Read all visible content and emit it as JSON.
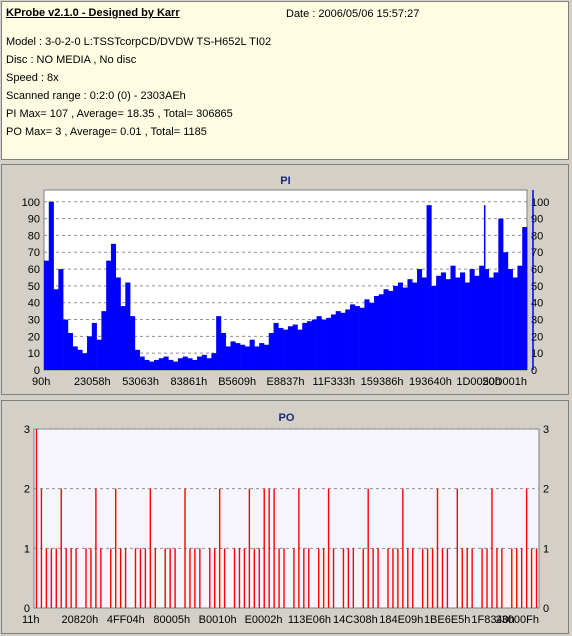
{
  "header": {
    "title": "KProbe v2.1.0 - Designed by Karr",
    "date": "Date : 2006/05/06 15:57:27",
    "model": "Model : 3-0-2-0 L:TSSTcorpCD/DVDW TS-H652L TI02",
    "disc": "Disc : NO MEDIA , No disc",
    "speed": "Speed : 8x",
    "scanned_range": "Scanned range : 0:2:0 (0) - 2303AEh",
    "pi_summary": "PI Max= 107 , Average= 18.35 , Total= 306865",
    "po_summary": "PO Max= 3 , Average= 0.01 , Total= 1185"
  },
  "colors": {
    "pi": "#0000ff",
    "po": "#ff0000",
    "plot_bg": "#ffffff",
    "po_plot_bg": "#f6f4fc",
    "panel_bg": "#d4d0c8",
    "title": "#1a2a7a"
  },
  "chart_data": [
    {
      "type": "area",
      "title": "PI",
      "xlabel": "",
      "ylabel": "",
      "ylim": [
        0,
        107
      ],
      "yticks": [
        0,
        10,
        20,
        30,
        40,
        50,
        60,
        70,
        80,
        90,
        100
      ],
      "grid": true,
      "x_tick_labels": [
        "90h",
        "23058h",
        "53063h",
        "83861h",
        "B5609h",
        "E8837h",
        "11F333h",
        "159386h",
        "193640h",
        "1D0050h",
        "20D001h"
      ],
      "series": [
        {
          "values": [
            65,
            100,
            48,
            60,
            30,
            22,
            14,
            12,
            10,
            20,
            28,
            18,
            35,
            65,
            75,
            55,
            38,
            52,
            32,
            12,
            8,
            6,
            5,
            6,
            7,
            8,
            6,
            5,
            7,
            8,
            7,
            6,
            8,
            9,
            7,
            10,
            32,
            22,
            14,
            17,
            16,
            15,
            14,
            18,
            14,
            16,
            15,
            22,
            28,
            25,
            24,
            26,
            27,
            24,
            28,
            29,
            30,
            32,
            30,
            31,
            33,
            35,
            34,
            36,
            39,
            38,
            37,
            42,
            40,
            44,
            45,
            48,
            47,
            50,
            52,
            49,
            54,
            52,
            60,
            55,
            98,
            50,
            56,
            58,
            54,
            62,
            55,
            58,
            52,
            60,
            56,
            62,
            60,
            55,
            58,
            90,
            70,
            60,
            55,
            62,
            85
          ],
          "peaks": [
            {
              "x": "90h",
              "y": 100
            },
            {
              "x": "1D0050h",
              "y": 98
            },
            {
              "x": "20D001h",
              "y": 107
            }
          ]
        }
      ]
    },
    {
      "type": "bar",
      "title": "PO",
      "xlabel": "",
      "ylabel": "",
      "ylim": [
        0,
        3
      ],
      "yticks": [
        0,
        1,
        2,
        3
      ],
      "grid": true,
      "x_tick_labels": [
        "11h",
        "20820h",
        "4FF04h",
        "80005h",
        "B0010h",
        "E0002h",
        "113E06h",
        "14C308h",
        "184E09h",
        "1BE6E5h",
        "1F8340h",
        "23000Fh"
      ],
      "series": [
        {
          "values": [
            3,
            2,
            1,
            1,
            1,
            2,
            1,
            1,
            1,
            0,
            1,
            1,
            2,
            1,
            0,
            1,
            2,
            1,
            1,
            0,
            1,
            1,
            1,
            2,
            1,
            0,
            1,
            1,
            1,
            0,
            2,
            1,
            1,
            1,
            0,
            1,
            1,
            2,
            1,
            0,
            1,
            1,
            1,
            2,
            1,
            1,
            2,
            2,
            2,
            1,
            1,
            0,
            1,
            2,
            1,
            1,
            0,
            1,
            1,
            2,
            1,
            0,
            1,
            1,
            1,
            0,
            1,
            2,
            1,
            1,
            0,
            1,
            1,
            1,
            2,
            1,
            1,
            0,
            1,
            1,
            1,
            2,
            1,
            1,
            0,
            2,
            1,
            1,
            1,
            0,
            1,
            1,
            2,
            1,
            1,
            0,
            1,
            1,
            1,
            2,
            1,
            1
          ]
        }
      ]
    }
  ]
}
